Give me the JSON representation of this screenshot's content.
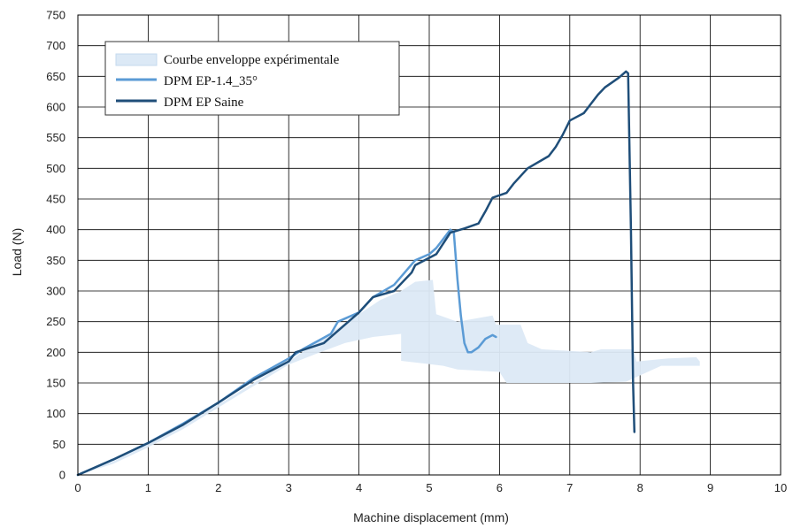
{
  "chart_data": {
    "type": "line",
    "title": "",
    "xlabel": "Machine displacement (mm)",
    "ylabel": "Load (N)",
    "xlim": [
      0,
      10
    ],
    "ylim": [
      0,
      750
    ],
    "xticks": [
      0,
      1,
      2,
      3,
      4,
      5,
      6,
      7,
      8,
      9,
      10
    ],
    "yticks": [
      0,
      50,
      100,
      150,
      200,
      250,
      300,
      350,
      400,
      450,
      500,
      550,
      600,
      650,
      700,
      750
    ],
    "grid": true,
    "legend_position": "top-left",
    "legend": [
      "Courbe enveloppe expérimentale",
      "DPM EP-1.4_35°",
      "DPM EP Saine"
    ],
    "envelope": {
      "name": "Courbe enveloppe expérimentale",
      "color": "#dce9f6",
      "upper": [
        [
          0,
          0
        ],
        [
          0.5,
          22
        ],
        [
          1,
          50
        ],
        [
          1.5,
          80
        ],
        [
          2,
          115
        ],
        [
          2.5,
          150
        ],
        [
          3,
          185
        ],
        [
          3.5,
          225
        ],
        [
          4,
          262
        ],
        [
          4.3,
          285
        ],
        [
          4.6,
          300
        ],
        [
          4.8,
          315
        ],
        [
          5.05,
          318
        ],
        [
          5.1,
          262
        ],
        [
          5.4,
          250
        ],
        [
          5.9,
          260
        ],
        [
          5.95,
          245
        ],
        [
          6.3,
          245
        ],
        [
          6.4,
          215
        ],
        [
          6.6,
          205
        ],
        [
          7.3,
          200
        ],
        [
          7.45,
          205
        ],
        [
          7.9,
          205
        ],
        [
          7.95,
          185
        ],
        [
          8.4,
          190
        ],
        [
          8.8,
          192
        ],
        [
          8.85,
          185
        ]
      ],
      "lower": [
        [
          8.85,
          178
        ],
        [
          8.3,
          178
        ],
        [
          7.8,
          152
        ],
        [
          7.3,
          150
        ],
        [
          6.5,
          150
        ],
        [
          6.1,
          150
        ],
        [
          6.0,
          168
        ],
        [
          5.7,
          170
        ],
        [
          5.4,
          172
        ],
        [
          5.2,
          178
        ],
        [
          4.9,
          182
        ],
        [
          4.6,
          186
        ],
        [
          4.6,
          230
        ],
        [
          4.2,
          225
        ],
        [
          3.8,
          215
        ],
        [
          3.4,
          198
        ],
        [
          3.0,
          180
        ],
        [
          2.5,
          145
        ],
        [
          2.0,
          110
        ],
        [
          1.5,
          75
        ],
        [
          1.0,
          45
        ],
        [
          0.5,
          18
        ],
        [
          0,
          0
        ]
      ]
    },
    "series": [
      {
        "name": "DPM EP-1.4_35°",
        "color": "#5b9bd5",
        "points": [
          [
            0,
            0
          ],
          [
            0.5,
            25
          ],
          [
            1,
            52
          ],
          [
            1.5,
            84
          ],
          [
            2,
            118
          ],
          [
            2.5,
            158
          ],
          [
            3,
            190
          ],
          [
            3.2,
            205
          ],
          [
            3.6,
            230
          ],
          [
            3.7,
            250
          ],
          [
            4,
            265
          ],
          [
            4.2,
            290
          ],
          [
            4.5,
            310
          ],
          [
            4.8,
            350
          ],
          [
            5.0,
            360
          ],
          [
            5.1,
            370
          ],
          [
            5.2,
            385
          ],
          [
            5.3,
            400
          ],
          [
            5.35,
            395
          ],
          [
            5.4,
            320
          ],
          [
            5.45,
            260
          ],
          [
            5.5,
            215
          ],
          [
            5.55,
            200
          ],
          [
            5.6,
            200
          ],
          [
            5.7,
            208
          ],
          [
            5.8,
            222
          ],
          [
            5.9,
            228
          ],
          [
            5.95,
            225
          ]
        ]
      },
      {
        "name": "DPM EP Saine",
        "color": "#1f4e79",
        "points": [
          [
            0,
            0
          ],
          [
            0.5,
            25
          ],
          [
            1,
            52
          ],
          [
            1.5,
            82
          ],
          [
            2,
            118
          ],
          [
            2.5,
            155
          ],
          [
            3,
            185
          ],
          [
            3.1,
            200
          ],
          [
            3.5,
            215
          ],
          [
            4,
            265
          ],
          [
            4.2,
            290
          ],
          [
            4.5,
            300
          ],
          [
            4.75,
            330
          ],
          [
            4.8,
            342
          ],
          [
            5.1,
            360
          ],
          [
            5.3,
            395
          ],
          [
            5.5,
            402
          ],
          [
            5.7,
            410
          ],
          [
            5.8,
            430
          ],
          [
            5.9,
            452
          ],
          [
            6.1,
            460
          ],
          [
            6.2,
            475
          ],
          [
            6.4,
            500
          ],
          [
            6.7,
            520
          ],
          [
            6.8,
            535
          ],
          [
            6.9,
            555
          ],
          [
            7.0,
            578
          ],
          [
            7.2,
            590
          ],
          [
            7.3,
            605
          ],
          [
            7.4,
            620
          ],
          [
            7.5,
            632
          ],
          [
            7.6,
            640
          ],
          [
            7.7,
            648
          ],
          [
            7.8,
            658
          ],
          [
            7.83,
            655
          ],
          [
            7.87,
            400
          ],
          [
            7.9,
            150
          ],
          [
            7.92,
            70
          ]
        ]
      }
    ]
  }
}
